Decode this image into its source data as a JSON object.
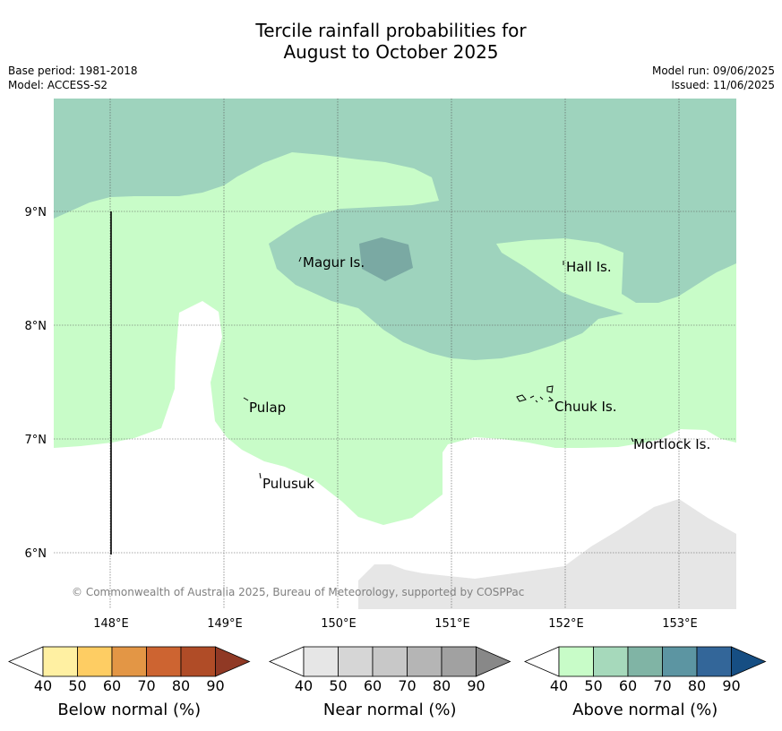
{
  "title": {
    "line1": "Tercile rainfall probabilities for",
    "line2": "August to October 2025"
  },
  "meta": {
    "base_period": "Base period: 1981-2018",
    "model": "Model: ACCESS-S2",
    "model_run": "Model run: 09/06/2025",
    "issued": "Issued: 11/06/2025"
  },
  "map": {
    "lat_labels": [
      "9°N",
      "8°N",
      "7°N",
      "6°N"
    ],
    "lon_labels": [
      "148°E",
      "149°E",
      "150°E",
      "151°E",
      "152°E",
      "153°E"
    ],
    "copyright": "© Commonwealth of Australia 2025, Bureau of Meteorology, supported by COSPPac",
    "places": {
      "magur": "Magur Is.",
      "hall": "Hall Is.",
      "pulap": "Pulap",
      "chuuk": "Chuuk Is.",
      "mortlock": "Mortlock Is.",
      "pulusuk": "Pulusuk"
    },
    "fill_colors": {
      "above_40": "#c8fcc8",
      "above_50": "#9ed3bd",
      "above_60": "#7aa9a3",
      "near_40": "#e6e6e6"
    }
  },
  "legends": [
    {
      "title": "Below normal (%)",
      "ticks": [
        "40",
        "50",
        "60",
        "70",
        "80",
        "90"
      ],
      "colors": [
        "#fff0a2",
        "#fecd63",
        "#e39645",
        "#cd6431",
        "#b04c27",
        "#903925"
      ]
    },
    {
      "title": "Near normal (%)",
      "ticks": [
        "40",
        "50",
        "60",
        "70",
        "80",
        "90"
      ],
      "colors": [
        "#e6e6e6",
        "#d6d6d6",
        "#c8c8c8",
        "#b5b5b5",
        "#a1a1a1",
        "#888888"
      ]
    },
    {
      "title": "Above normal (%)",
      "ticks": [
        "40",
        "50",
        "60",
        "70",
        "80",
        "90"
      ],
      "colors": [
        "#c8fcc8",
        "#a6d9bb",
        "#80b4a5",
        "#5c95a2",
        "#336699",
        "#164e83"
      ]
    }
  ]
}
